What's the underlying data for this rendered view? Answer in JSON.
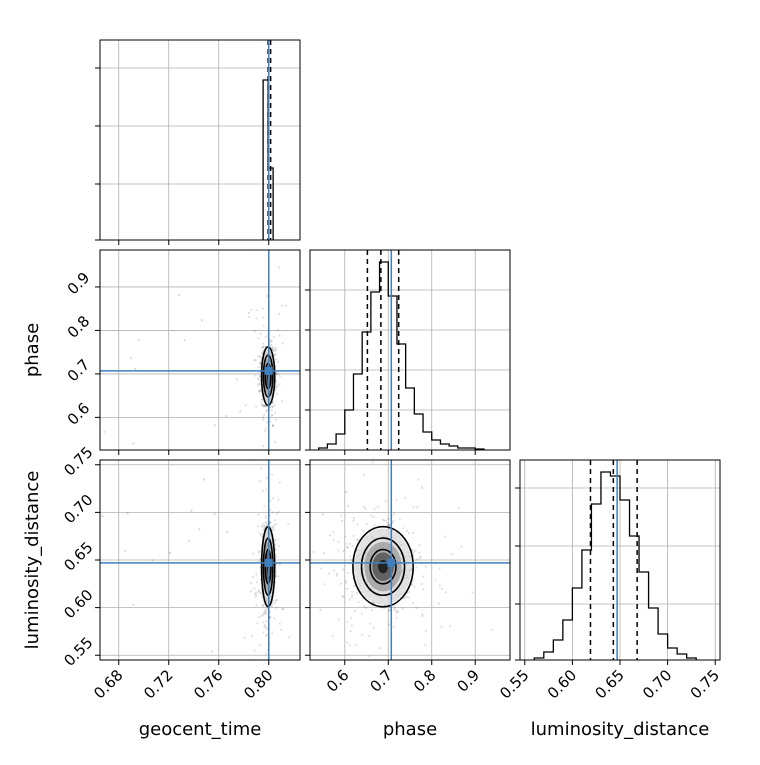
{
  "chart_data": {
    "type": "corner",
    "parameters": [
      "geocent_time",
      "phase",
      "luminosity_distance"
    ],
    "truth": {
      "geocent_time": 0.8,
      "phase": 0.707,
      "luminosity_distance": 0.647
    },
    "colors": {
      "truth": "#3f7fbf",
      "hist": "#000000",
      "grid": "#b0b0b0",
      "points": "#000000"
    },
    "grid": true,
    "panels": {
      "geocent_time_hist": {
        "xlim": [
          0.665,
          0.825
        ],
        "x_ticks": [
          0.68,
          0.72,
          0.76,
          0.8
        ],
        "x_tick_labels": [
          "0.68",
          "0.72",
          "0.76",
          "0.80"
        ],
        "bins": [
          [
            0.7955,
            0.7995,
            0.8
          ],
          [
            0.7995,
            0.8035,
            0.36
          ]
        ],
        "quantiles": [
          0.7995,
          0.8,
          0.8015
        ]
      },
      "phase_hist": {
        "xlim": [
          0.52,
          0.98
        ],
        "x_ticks": [
          0.6,
          0.7,
          0.8,
          0.9
        ],
        "x_tick_labels": [
          "0.6",
          "0.7",
          "0.8",
          "0.9"
        ],
        "bin_edges": [
          0.54,
          0.56,
          0.58,
          0.6,
          0.62,
          0.64,
          0.66,
          0.68,
          0.7,
          0.72,
          0.74,
          0.76,
          0.78,
          0.8,
          0.82,
          0.84,
          0.86,
          0.88,
          0.9,
          0.92
        ],
        "counts": [
          0.01,
          0.03,
          0.08,
          0.2,
          0.38,
          0.59,
          0.79,
          0.94,
          0.77,
          0.53,
          0.31,
          0.18,
          0.09,
          0.05,
          0.03,
          0.02,
          0.01,
          0.01,
          0.005
        ],
        "quantiles": [
          0.652,
          0.683,
          0.724
        ]
      },
      "luminosity_distance_hist": {
        "xlim": [
          0.545,
          0.755
        ],
        "x_ticks": [
          0.55,
          0.6,
          0.65,
          0.7,
          0.75
        ],
        "x_tick_labels": [
          "0.55",
          "0.60",
          "0.65",
          "0.70",
          "0.75"
        ],
        "bin_edges": [
          0.56,
          0.57,
          0.58,
          0.59,
          0.6,
          0.61,
          0.62,
          0.63,
          0.64,
          0.65,
          0.66,
          0.67,
          0.68,
          0.69,
          0.7,
          0.71,
          0.72,
          0.73
        ],
        "counts": [
          0.01,
          0.04,
          0.1,
          0.2,
          0.36,
          0.55,
          0.78,
          0.94,
          0.92,
          0.8,
          0.62,
          0.44,
          0.26,
          0.13,
          0.06,
          0.03,
          0.01
        ],
        "quantiles": [
          0.619,
          0.643,
          0.668
        ]
      },
      "phase_vs_geocent_time": {
        "xlim": [
          0.665,
          0.825
        ],
        "ylim": [
          0.525,
          0.985
        ],
        "y_ticks": [
          0.6,
          0.7,
          0.8,
          0.9
        ],
        "y_tick_labels": [
          "0.6",
          "0.7",
          "0.8",
          "0.9"
        ],
        "center": [
          0.7995,
          0.695
        ],
        "spread": [
          0.0025,
          0.032
        ]
      },
      "luminosity_distance_vs_geocent_time": {
        "xlim": [
          0.665,
          0.825
        ],
        "ylim": [
          0.545,
          0.755
        ],
        "y_ticks": [
          0.55,
          0.6,
          0.65,
          0.7,
          0.75
        ],
        "y_tick_labels": [
          "0.55",
          "0.60",
          "0.65",
          "0.70",
          "0.75"
        ],
        "center": [
          0.7995,
          0.643
        ],
        "spread": [
          0.0025,
          0.02
        ]
      },
      "luminosity_distance_vs_phase": {
        "xlim": [
          0.52,
          0.98
        ],
        "ylim": [
          0.545,
          0.755
        ],
        "center": [
          0.688,
          0.643
        ],
        "spread": [
          0.033,
          0.02
        ]
      }
    },
    "xlabels": [
      "geocent_time",
      "phase",
      "luminosity_distance"
    ],
    "ylabels": [
      "phase",
      "luminosity_distance"
    ]
  }
}
